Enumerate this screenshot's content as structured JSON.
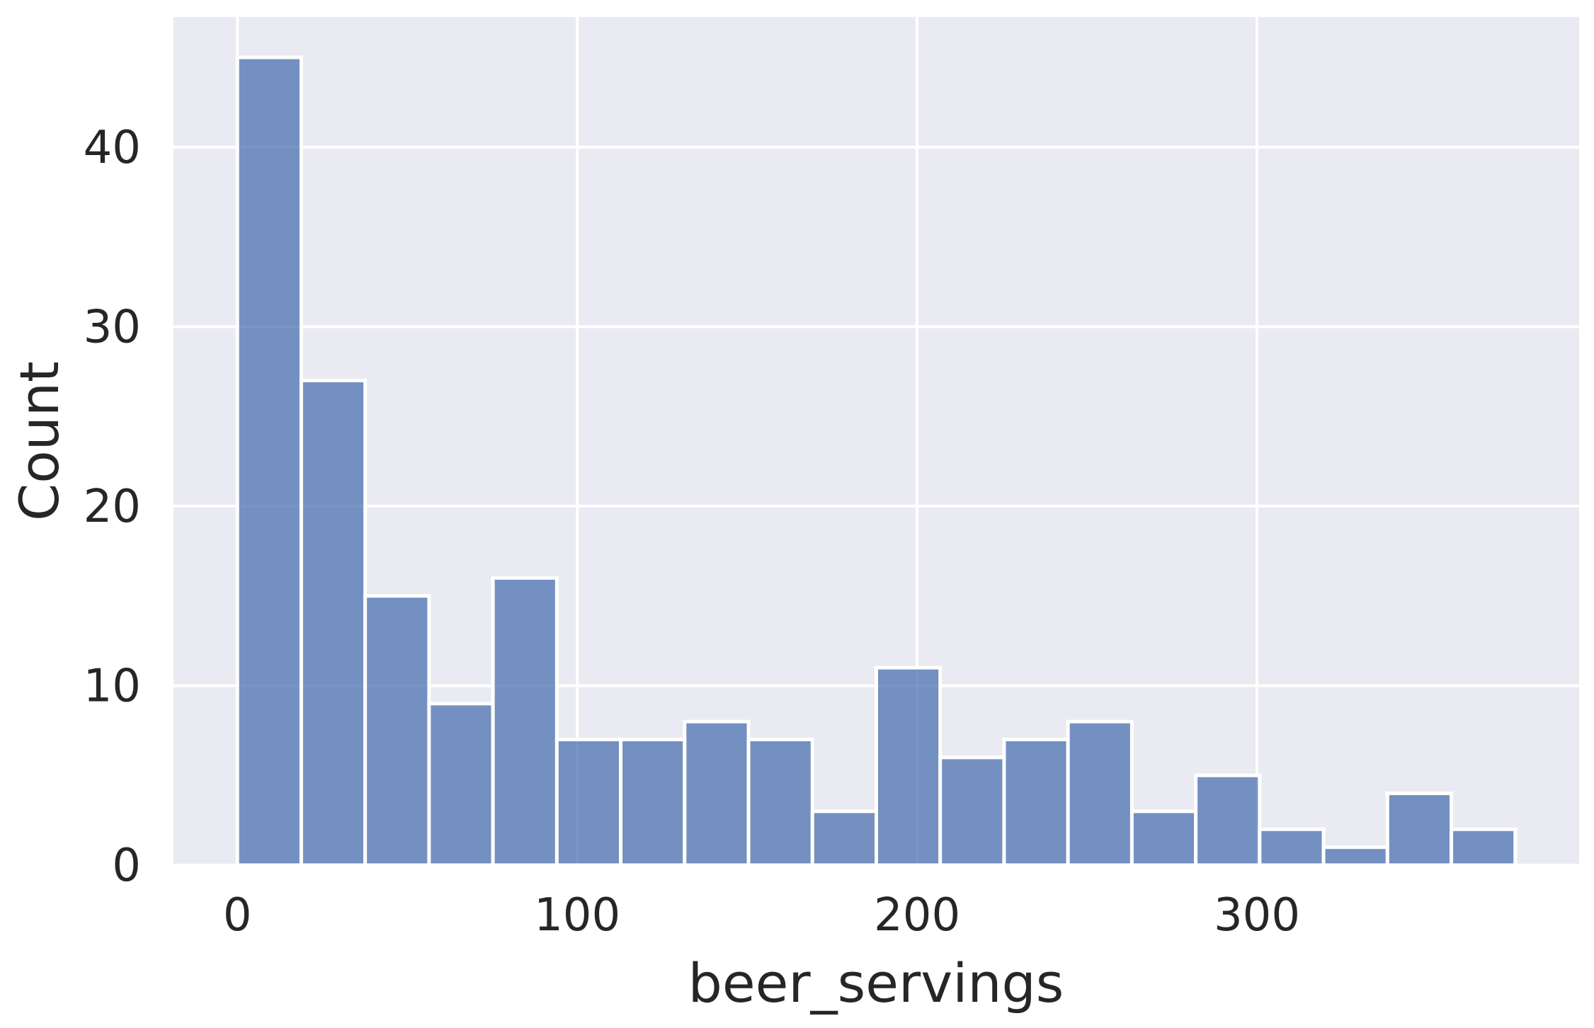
{
  "chart_data": {
    "type": "bar",
    "title": "",
    "xlabel": "beer_servings",
    "ylabel": "Count",
    "xlim": [
      -18.8,
      394.8
    ],
    "ylim": [
      0,
      47.25
    ],
    "xticks": [
      0,
      100,
      200,
      300
    ],
    "yticks": [
      0,
      10,
      20,
      30,
      40
    ],
    "grid": true,
    "bar_color": "#4c72b0",
    "background_color": "#eaeaf2",
    "bin_edges": [
      0,
      18.8,
      37.6,
      56.4,
      75.2,
      94.0,
      112.8,
      131.6,
      150.4,
      169.2,
      188.0,
      206.8,
      225.6,
      244.4,
      263.2,
      282.0,
      300.8,
      319.6,
      338.4,
      357.2,
      376.0
    ],
    "values": [
      45,
      27,
      15,
      9,
      16,
      7,
      7,
      8,
      7,
      3,
      11,
      6,
      7,
      8,
      3,
      5,
      2,
      1,
      4,
      2
    ]
  }
}
